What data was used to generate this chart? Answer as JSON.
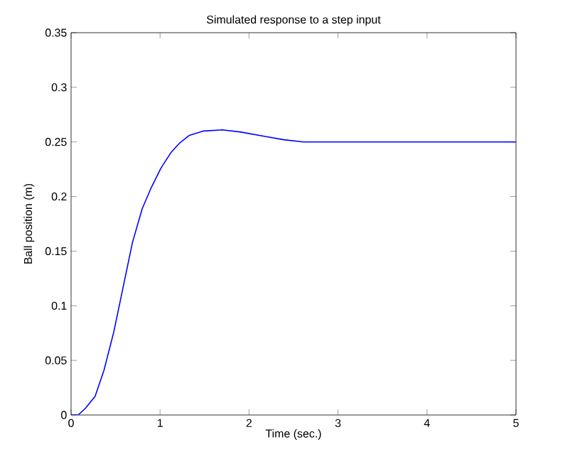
{
  "chart_data": {
    "type": "line",
    "title": "Simulated response to a step input",
    "xlabel": "Time (sec.)",
    "ylabel": "Ball position (m)",
    "x": [
      0,
      0.08,
      0.16,
      0.27,
      0.37,
      0.48,
      0.59,
      0.69,
      0.8,
      0.9,
      1.01,
      1.12,
      1.22,
      1.33,
      1.49,
      1.7,
      1.91,
      2.18,
      2.39,
      2.61,
      3,
      4,
      5
    ],
    "series": [
      {
        "color": "#0000ff",
        "values": [
          0,
          0,
          0.006,
          0.017,
          0.041,
          0.076,
          0.119,
          0.158,
          0.189,
          0.208,
          0.226,
          0.24,
          0.249,
          0.256,
          0.26,
          0.261,
          0.259,
          0.255,
          0.252,
          0.25,
          0.25,
          0.25,
          0.25
        ]
      }
    ],
    "xlim": [
      0,
      5
    ],
    "ylim": [
      0,
      0.35
    ],
    "xticks": [
      0,
      1,
      2,
      3,
      4,
      5
    ],
    "yticks": [
      0,
      0.05,
      0.1,
      0.15,
      0.2,
      0.25,
      0.3,
      0.35
    ],
    "grid": false,
    "marker": "none",
    "line_style": "solid"
  }
}
